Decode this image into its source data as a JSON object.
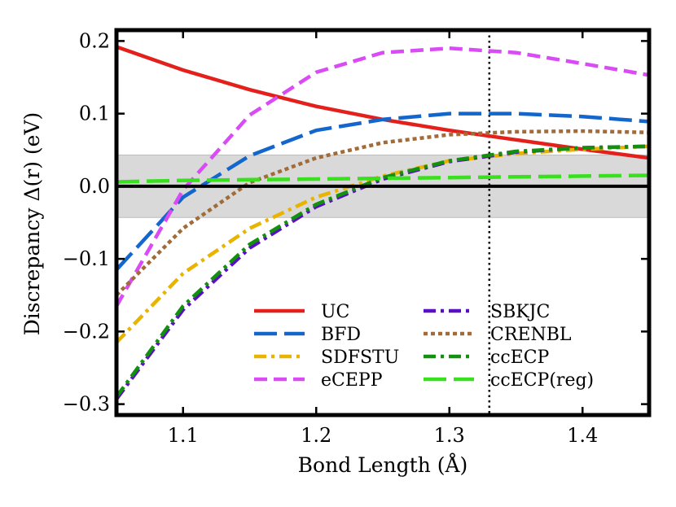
{
  "chart_data": {
    "type": "line",
    "xlabel": "Bond Length (Å)",
    "ylabel": "Discrepancy Δ(r) (eV)",
    "xlim": [
      1.05,
      1.45
    ],
    "ylim": [
      -0.315,
      0.215
    ],
    "x_ticks": [
      1.1,
      1.2,
      1.3,
      1.4
    ],
    "x_tick_labels": [
      "1.1",
      "1.2",
      "1.3",
      "1.4"
    ],
    "y_ticks": [
      -0.3,
      -0.2,
      -0.1,
      0.0,
      0.1,
      0.2
    ],
    "y_tick_labels": [
      "−0.3",
      "−0.2",
      "−0.1",
      "0.0",
      "0.1",
      "0.2"
    ],
    "band": [
      -0.043,
      0.043
    ],
    "band_color": "#d9d9d9",
    "vline_x": 1.33,
    "zero_line": 0,
    "legend_placement": "lower-right",
    "x": [
      1.05,
      1.1,
      1.15,
      1.2,
      1.25,
      1.3,
      1.35,
      1.4,
      1.45
    ],
    "series": [
      {
        "name": "UC",
        "color": "#e3201c",
        "dash": "solid",
        "values": [
          0.192,
          0.16,
          0.133,
          0.11,
          0.092,
          0.077,
          0.064,
          0.051,
          0.039
        ]
      },
      {
        "name": "BFD",
        "color": "#1266cc",
        "dash": "longdash",
        "values": [
          -0.115,
          -0.015,
          0.042,
          0.077,
          0.092,
          0.1,
          0.1,
          0.096,
          0.089
        ]
      },
      {
        "name": "SDFSTU",
        "color": "#e8b400",
        "dash": "dashdot",
        "values": [
          -0.215,
          -0.12,
          -0.058,
          -0.015,
          0.014,
          0.035,
          0.045,
          0.051,
          0.055
        ]
      },
      {
        "name": "eCEPP",
        "color": "#d94bf5",
        "dash": "dashed",
        "values": [
          -0.165,
          -0.005,
          0.098,
          0.157,
          0.184,
          0.19,
          0.184,
          0.169,
          0.153
        ]
      },
      {
        "name": "SBKJC",
        "color": "#5a0fc4",
        "dash": "dashdot",
        "values": [
          -0.293,
          -0.17,
          -0.085,
          -0.028,
          0.01,
          0.034,
          0.047,
          0.053,
          0.055
        ]
      },
      {
        "name": "CRENBL",
        "color": "#a16c3a",
        "dash": "dotted",
        "values": [
          -0.15,
          -0.058,
          0.005,
          0.039,
          0.06,
          0.071,
          0.075,
          0.076,
          0.074
        ]
      },
      {
        "name": "ccECP",
        "color": "#14900f",
        "dash": "dashdot",
        "values": [
          -0.29,
          -0.165,
          -0.08,
          -0.025,
          0.012,
          0.035,
          0.048,
          0.053,
          0.055
        ]
      },
      {
        "name": "ccECP(reg)",
        "color": "#38e01e",
        "dash": "longdash",
        "values": [
          0.006,
          0.008,
          0.009,
          0.01,
          0.011,
          0.012,
          0.013,
          0.014,
          0.015
        ]
      }
    ]
  }
}
